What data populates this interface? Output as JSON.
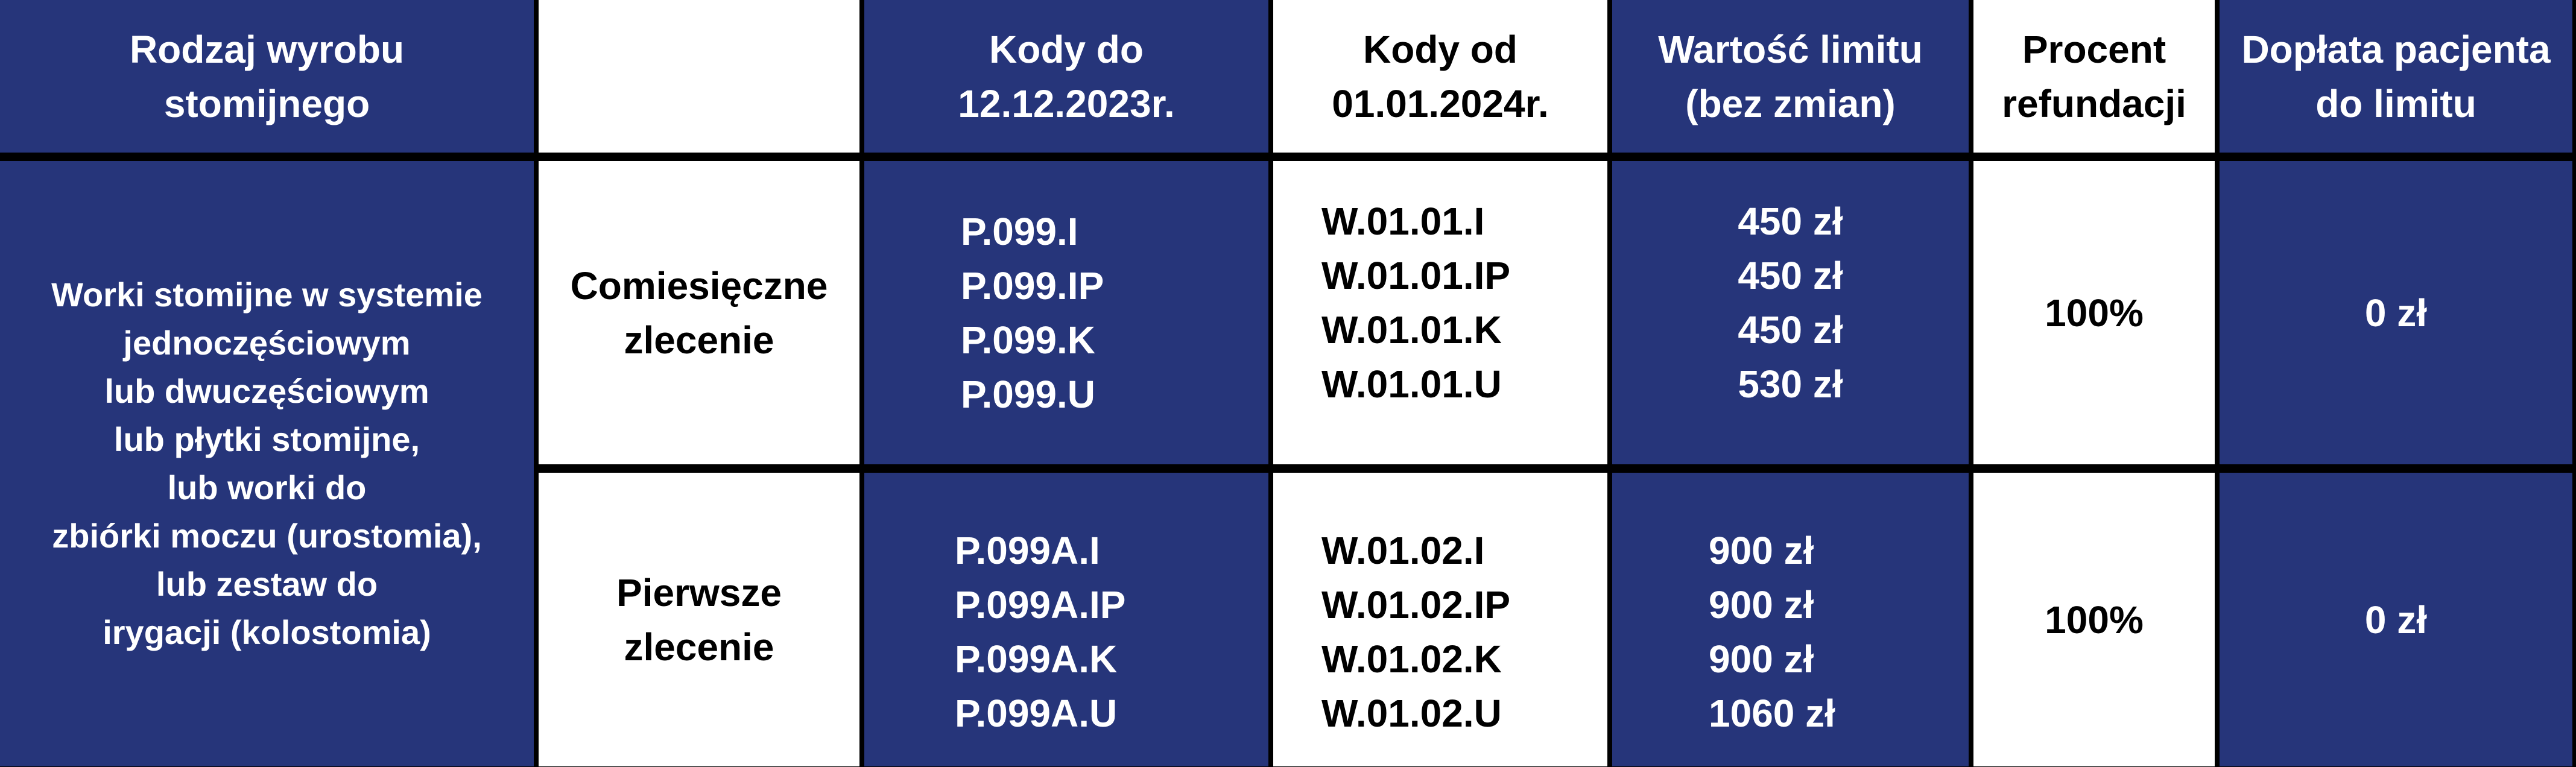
{
  "header": {
    "col1": [
      "Rodzaj wyrobu",
      "stomijnego"
    ],
    "col2": [],
    "col3": [
      "Kody do",
      "12.12.2023r."
    ],
    "col4": [
      "Kody od",
      "01.01.2024r."
    ],
    "col5": [
      "Wartość limitu",
      "(bez zmian)"
    ],
    "col6": [
      "Procent",
      "refundacji"
    ],
    "col7": [
      "Dopłata pacjenta",
      "do limitu"
    ]
  },
  "product": [
    "Worki stomijne w systemie",
    "jednoczęściowym",
    "lub dwuczęściowym",
    "lub płytki stomijne,",
    "lub worki do",
    "zbiórki moczu (urostomia),",
    "lub zestaw do",
    "irygacji (kolostomia)"
  ],
  "rows": [
    {
      "order": [
        "Comiesięczne",
        "zlecenie"
      ],
      "old_codes": [
        "P.099.I",
        "P.099.IP",
        "P.099.K",
        "P.099.U"
      ],
      "new_codes": [
        "W.01.01.I",
        "W.01.01.IP",
        "W.01.01.K",
        "W.01.01.U"
      ],
      "limits": [
        "450 zł",
        "450 zł",
        "450 zł",
        "530 zł"
      ],
      "refund": "100%",
      "copay": "0 zł"
    },
    {
      "order": [
        "Pierwsze",
        "zlecenie"
      ],
      "old_codes": [
        "P.099A.I",
        "P.099A.IP",
        "P.099A.K",
        "P.099A.U"
      ],
      "new_codes": [
        "W.01.02.I",
        "W.01.02.IP",
        "W.01.02.K",
        "W.01.02.U"
      ],
      "limits": [
        "900 zł",
        "900 zł",
        "900 zł",
        "1060 zł"
      ],
      "refund": "100%",
      "copay": "0 zł"
    }
  ],
  "colors": {
    "navy": "#26357a",
    "white": "#ffffff",
    "border": "#000000"
  }
}
